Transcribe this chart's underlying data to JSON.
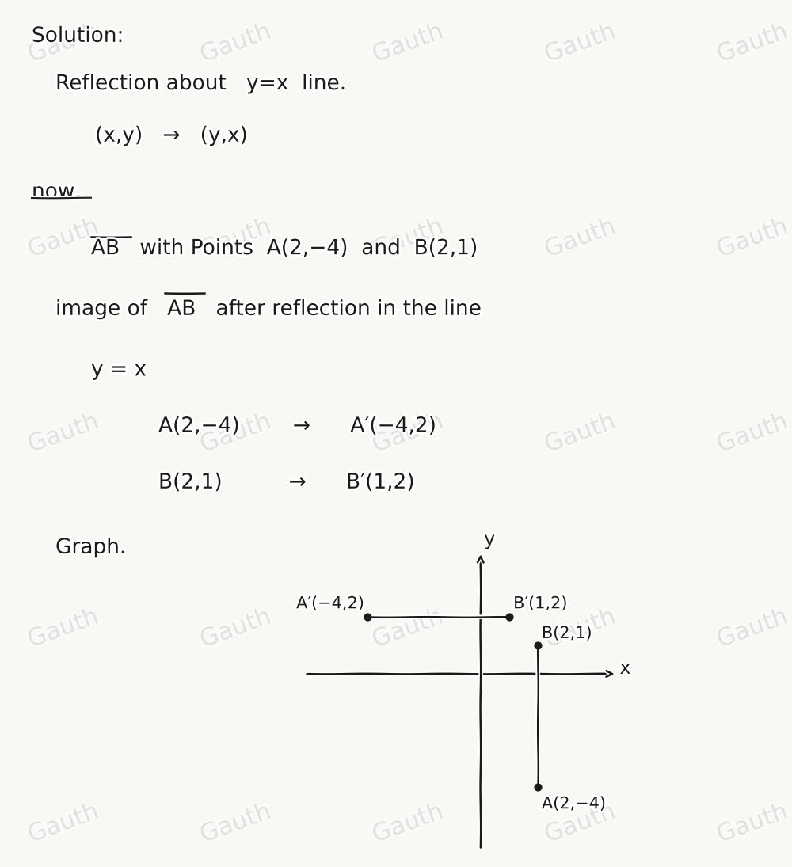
{
  "bg_color": "#f8f8f5",
  "text_color": "#1a1a1a",
  "wm_color": "#c8c8c8",
  "A": [
    2,
    -4
  ],
  "B": [
    2,
    1
  ],
  "A_prime": [
    -4,
    2
  ],
  "B_prime": [
    1,
    2
  ],
  "fs_large": 19,
  "fs_med": 17,
  "fs_graph": 15
}
